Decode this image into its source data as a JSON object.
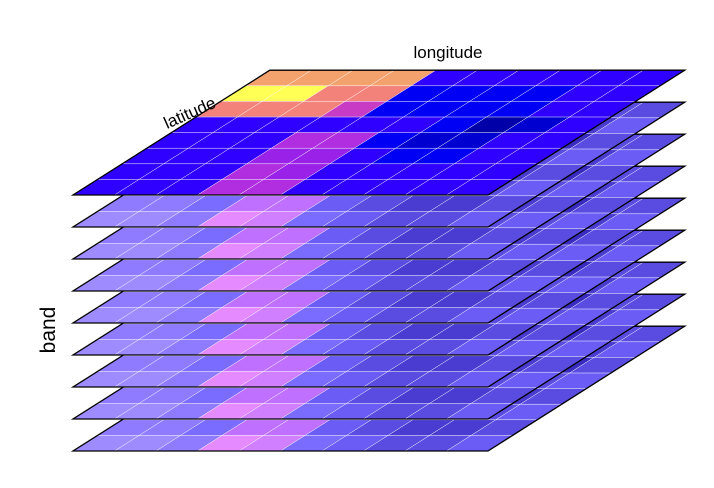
{
  "labels": {
    "top": "longitude",
    "diagonal": "latitude",
    "side": "band"
  },
  "cube": {
    "layers": 9,
    "columns": 10,
    "rows": 8,
    "grid_color": "#ffffff",
    "outline_color": "#000000",
    "top_grid": [
      [
        "#f3a16d",
        "#f3a16d",
        "#f3a16d",
        "#f3a16d",
        "#2f00ff",
        "#2f00ff",
        "#2f00ff",
        "#2f00ff",
        "#2f00ff",
        "#2f00ff"
      ],
      [
        "#ffff55",
        "#ffff55",
        "#f3837a",
        "#f3837a",
        "#0000f5",
        "#0000f5",
        "#0000f5",
        "#0000f5",
        "#2f00ff",
        "#2f00ff"
      ],
      [
        "#f3837a",
        "#f3837a",
        "#f3837a",
        "#c83bc4",
        "#0000f5",
        "#0000f5",
        "#0000f5",
        "#0000f5",
        "#2f00ff",
        "#2f00ff"
      ],
      [
        "#2f00ff",
        "#2f00ff",
        "#2f00ff",
        "#2f00ff",
        "#2f00ff",
        "#2f00ff",
        "#0000f5",
        "#0000a8",
        "#0000d0",
        "#2f00ff"
      ],
      [
        "#2f00ff",
        "#2f00ff",
        "#2f00ff",
        "#b02ee0",
        "#b02ee0",
        "#0000f5",
        "#0000d0",
        "#0000d0",
        "#2f00ff",
        "#2f00ff"
      ],
      [
        "#2f00ff",
        "#2f00ff",
        "#2f00ff",
        "#9a22e8",
        "#9a22e8",
        "#2f00ff",
        "#0000f5",
        "#0000f5",
        "#2f00ff",
        "#2f00ff"
      ],
      [
        "#2f00ff",
        "#2f00ff",
        "#2f00ff",
        "#b02ee0",
        "#9a22e8",
        "#2f00ff",
        "#2f00ff",
        "#2f00ff",
        "#2f00ff",
        "#2f00ff"
      ],
      [
        "#2f00ff",
        "#2f00ff",
        "#2f00ff",
        "#b02ee0",
        "#b02ee0",
        "#2f00ff",
        "#2f00ff",
        "#2f00ff",
        "#2f00ff",
        "#2f00ff"
      ]
    ],
    "band_colors": [
      [
        "#9e8cff",
        "#9e8cff",
        "#8f7bff",
        "#e58aff",
        "#e58aff",
        "#7a6cff",
        "#7a6cff",
        "#6a5cf5",
        "#5a4ce0",
        "#5a4ce0"
      ],
      [
        "#b3a3ff",
        "#9e8cff",
        "#9e8cff",
        "#d080ff",
        "#9e8cff",
        "#7a6cff",
        "#5a4ce0",
        "#4a3cd0",
        "#4a3cd0",
        "#6a5cf5"
      ],
      [
        "#8f7bff",
        "#8f7bff",
        "#8f7bff",
        "#c070ff",
        "#c070ff",
        "#7a6cff",
        "#6a5cf5",
        "#4a3cd0",
        "#3a2cc0",
        "#5a4ce0"
      ],
      [
        "#9e8cff",
        "#b3a3ff",
        "#9e8cff",
        "#e58aff",
        "#9e8cff",
        "#7a6cff",
        "#7a6cff",
        "#5a4ce0",
        "#5a4ce0",
        "#6a5cf5"
      ],
      [
        "#8f7bff",
        "#8f7bff",
        "#8f7bff",
        "#d080ff",
        "#d080ff",
        "#6a5cf5",
        "#6a5cf5",
        "#4a3cd0",
        "#4a3cd0",
        "#5a4ce0"
      ],
      [
        "#b3a3ff",
        "#9e8cff",
        "#9e8cff",
        "#e58aff",
        "#e58aff",
        "#7a6cff",
        "#7a6cff",
        "#6a5cf5",
        "#5a4ce0",
        "#6a5cf5"
      ],
      [
        "#8f7bff",
        "#8f7bff",
        "#7a6cff",
        "#c070ff",
        "#c070ff",
        "#6a5cf5",
        "#5a4ce0",
        "#4a3cd0",
        "#4a3cd0",
        "#5a4ce0"
      ],
      [
        "#9e8cff",
        "#9e8cff",
        "#8f7bff",
        "#e58aff",
        "#d080ff",
        "#7a6cff",
        "#6a5cf5",
        "#5a4ce0",
        "#5a4ce0",
        "#6a5cf5"
      ]
    ]
  }
}
